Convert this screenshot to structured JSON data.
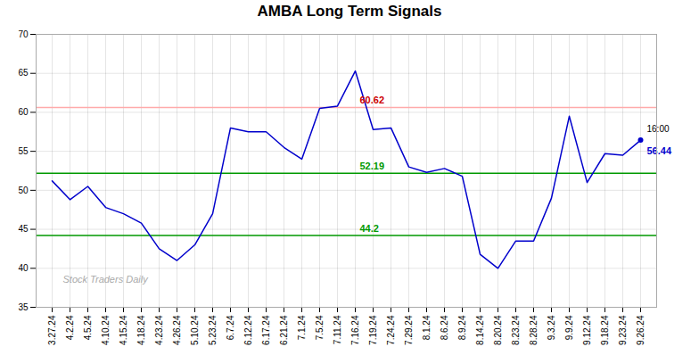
{
  "chart_data": {
    "type": "line",
    "title": "AMBA Long Term Signals",
    "categories": [
      "3.27.24",
      "4.2.24",
      "4.5.24",
      "4.10.24",
      "4.15.24",
      "4.18.24",
      "4.23.24",
      "4.26.24",
      "5.10.24",
      "5.23.24",
      "6.7.24",
      "6.12.24",
      "6.17.24",
      "6.21.24",
      "7.1.24",
      "7.5.24",
      "7.11.24",
      "7.16.24",
      "7.19.24",
      "7.24.24",
      "7.29.24",
      "8.1.24",
      "8.6.24",
      "8.9.24",
      "8.14.24",
      "8.20.24",
      "8.23.24",
      "8.28.24",
      "9.3.24",
      "9.9.24",
      "9.12.24",
      "9.18.24",
      "9.23.24",
      "9.26.24"
    ],
    "values": [
      51.2,
      48.8,
      50.5,
      47.8,
      47.0,
      45.8,
      42.5,
      41.0,
      43.0,
      47.0,
      58.0,
      57.5,
      57.5,
      55.5,
      54.0,
      60.5,
      60.8,
      65.3,
      57.8,
      58.0,
      53.0,
      52.3,
      52.8,
      51.8,
      41.8,
      40.0,
      43.5,
      43.5,
      49.0,
      59.5,
      51.0,
      54.7,
      54.5,
      56.44
    ],
    "color": "#0000cc",
    "hlines": [
      {
        "value": 60.62,
        "color": "#ffaaaa",
        "label": "60.62",
        "label_color": "#cc0000"
      },
      {
        "value": 52.19,
        "color": "#009900",
        "label": "52.19",
        "label_color": "#009900"
      },
      {
        "value": 44.2,
        "color": "#009900",
        "label": "44.2",
        "label_color": "#009900"
      }
    ],
    "annotations": [
      {
        "text": "16:00"
      },
      {
        "text": "56.44",
        "value": 56.44
      }
    ],
    "watermark": "Stock Traders Daily",
    "ylim": [
      35,
      70
    ],
    "yticks": [
      35,
      40,
      45,
      50,
      55,
      60,
      65,
      70
    ],
    "grid": true
  }
}
